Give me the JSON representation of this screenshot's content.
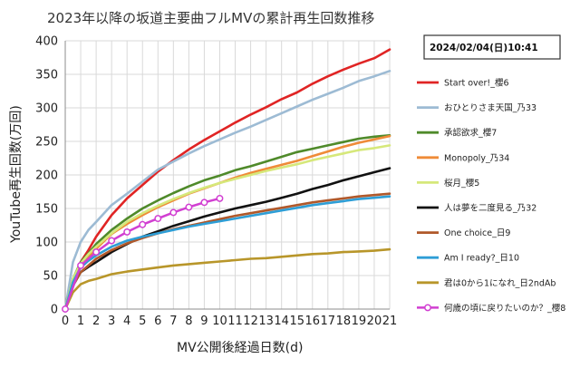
{
  "chart_data": {
    "type": "line",
    "title": "2023年以降の坂道主要曲フルMVの累計再生回数推移",
    "date_box": "2024/02/04(日)10:41",
    "xlabel": "MV公開後経過日数(d)",
    "ylabel": "YouTube再生回数(万回)",
    "xlim": [
      0,
      21
    ],
    "ylim": [
      0,
      400
    ],
    "x_ticks": [
      "0",
      "1",
      "2",
      "3",
      "4",
      "5",
      "6",
      "7",
      "8",
      "9",
      "10",
      "11",
      "12",
      "13",
      "14",
      "15",
      "16",
      "17",
      "18",
      "19",
      "20",
      "21"
    ],
    "y_ticks": [
      "0",
      "50",
      "100",
      "150",
      "200",
      "250",
      "300",
      "350",
      "400"
    ],
    "grid": true,
    "legend_position": "right",
    "series": [
      {
        "name": "Start over!_櫻6",
        "color": "#e02424",
        "marker": false,
        "x": [
          0,
          0.5,
          1,
          1.5,
          2,
          3,
          4,
          5,
          6,
          7,
          8,
          9,
          10,
          11,
          12,
          13,
          14,
          15,
          16,
          17,
          18,
          19,
          20,
          21
        ],
        "y": [
          0,
          40,
          70,
          88,
          108,
          140,
          165,
          185,
          205,
          222,
          238,
          252,
          265,
          278,
          290,
          301,
          313,
          323,
          336,
          347,
          357,
          366,
          374,
          387
        ]
      },
      {
        "name": "おひとりさま天国_乃33",
        "color": "#9dbbd4",
        "marker": false,
        "x": [
          0,
          0.5,
          1,
          1.5,
          2,
          3,
          4,
          5,
          6,
          7,
          8,
          9,
          10,
          11,
          12,
          13,
          14,
          15,
          16,
          17,
          18,
          19,
          20,
          21
        ],
        "y": [
          0,
          70,
          100,
          118,
          130,
          155,
          172,
          190,
          208,
          220,
          232,
          243,
          253,
          263,
          272,
          282,
          292,
          302,
          312,
          321,
          330,
          340,
          347,
          355
        ]
      },
      {
        "name": "承認欲求_櫻7",
        "color": "#4f8a2a",
        "marker": false,
        "x": [
          0,
          0.5,
          1,
          1.5,
          2,
          3,
          4,
          5,
          6,
          7,
          8,
          9,
          10,
          11,
          12,
          13,
          14,
          15,
          16,
          17,
          18,
          19,
          20,
          21
        ],
        "y": [
          0,
          45,
          70,
          83,
          97,
          118,
          135,
          150,
          162,
          173,
          183,
          192,
          199,
          207,
          213,
          220,
          227,
          234,
          239,
          244,
          249,
          254,
          257,
          259
        ]
      },
      {
        "name": "Monopoly_乃34",
        "color": "#ef8b38",
        "marker": false,
        "x": [
          0,
          0.5,
          1,
          1.5,
          2,
          3,
          4,
          5,
          6,
          7,
          8,
          9,
          10,
          11,
          12,
          13,
          14,
          15,
          16,
          17,
          18,
          19,
          20,
          21
        ],
        "y": [
          0,
          40,
          65,
          78,
          90,
          112,
          127,
          140,
          152,
          162,
          172,
          180,
          188,
          196,
          203,
          209,
          215,
          221,
          228,
          235,
          242,
          248,
          253,
          258
        ]
      },
      {
        "name": "桜月_櫻5",
        "color": "#d6e87a",
        "marker": false,
        "x": [
          0,
          0.5,
          1,
          1.5,
          2,
          3,
          4,
          5,
          6,
          7,
          8,
          9,
          10,
          11,
          12,
          13,
          14,
          15,
          16,
          17,
          18,
          19,
          20,
          21
        ],
        "y": [
          0,
          45,
          68,
          82,
          93,
          113,
          130,
          143,
          154,
          164,
          173,
          181,
          188,
          194,
          200,
          206,
          211,
          216,
          222,
          227,
          232,
          237,
          240,
          244
        ]
      },
      {
        "name": "人は夢を二度見る_乃32",
        "color": "#111111",
        "marker": false,
        "x": [
          0,
          0.5,
          1,
          1.5,
          2,
          3,
          4,
          5,
          6,
          7,
          8,
          9,
          10,
          11,
          12,
          13,
          14,
          15,
          16,
          17,
          18,
          19,
          20,
          21
        ],
        "y": [
          0,
          35,
          55,
          63,
          70,
          85,
          97,
          108,
          116,
          124,
          131,
          138,
          144,
          150,
          155,
          160,
          166,
          172,
          179,
          185,
          192,
          198,
          204,
          210
        ]
      },
      {
        "name": "One choice_日9",
        "color": "#b0582a",
        "marker": false,
        "x": [
          0,
          0.5,
          1,
          1.5,
          2,
          3,
          4,
          5,
          6,
          7,
          8,
          9,
          10,
          11,
          12,
          13,
          14,
          15,
          16,
          17,
          18,
          19,
          20,
          21
        ],
        "y": [
          0,
          35,
          55,
          65,
          75,
          88,
          98,
          106,
          113,
          119,
          124,
          129,
          134,
          139,
          143,
          147,
          151,
          155,
          159,
          162,
          165,
          168,
          170,
          172
        ]
      },
      {
        "name": "Am I ready?_日10",
        "color": "#2e9ed6",
        "marker": false,
        "x": [
          0,
          0.5,
          1,
          1.5,
          2,
          3,
          4,
          5,
          6,
          7,
          8,
          9,
          10,
          11,
          12,
          13,
          14,
          15,
          16,
          17,
          18,
          19,
          20,
          21
        ],
        "y": [
          0,
          40,
          62,
          72,
          80,
          93,
          102,
          108,
          113,
          118,
          123,
          127,
          131,
          135,
          139,
          143,
          147,
          151,
          155,
          158,
          161,
          164,
          166,
          168
        ]
      },
      {
        "name": "君は0から1になれ_日2ndAb",
        "color": "#b8962a",
        "marker": false,
        "x": [
          0,
          0.5,
          1,
          1.5,
          2,
          3,
          4,
          5,
          6,
          7,
          8,
          9,
          10,
          11,
          12,
          13,
          14,
          15,
          16,
          17,
          18,
          19,
          20,
          21
        ],
        "y": [
          0,
          25,
          37,
          42,
          45,
          52,
          56,
          59,
          62,
          65,
          67,
          69,
          71,
          73,
          75,
          76,
          78,
          80,
          82,
          83,
          85,
          86,
          87,
          89
        ]
      },
      {
        "name": "何歳の頃に戻りたいのか？_櫻8",
        "color": "#d13fd1",
        "marker": true,
        "x": [
          0,
          1,
          2,
          3,
          4,
          5,
          6,
          7,
          8,
          9,
          10
        ],
        "y": [
          0,
          65,
          85,
          102,
          115,
          126,
          135,
          144,
          152,
          159,
          165
        ]
      }
    ]
  }
}
